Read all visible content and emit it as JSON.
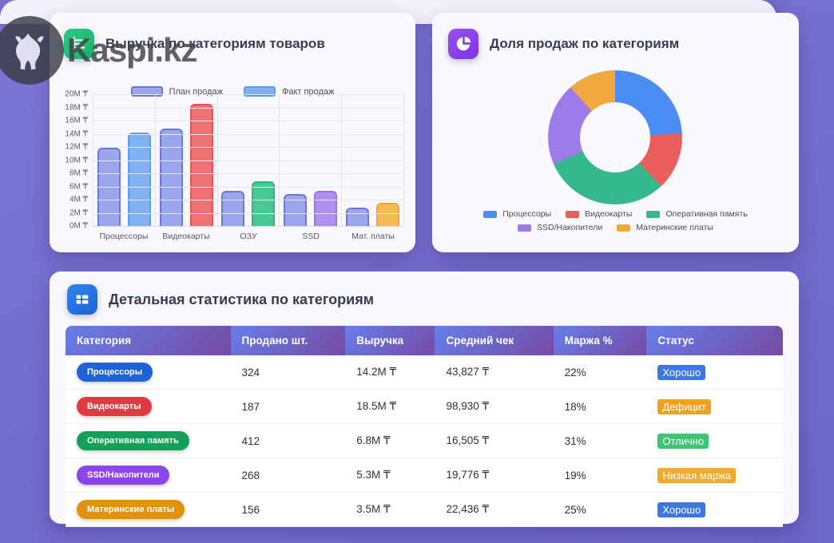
{
  "watermark": {
    "text": "Kaspi.kz"
  },
  "colors": {
    "background": "#746cce",
    "card": "#f8f8fd",
    "table_header_from": "#667eea",
    "table_header_to": "#764ba2"
  },
  "revenue_card": {
    "title": "Выручка по категориям товаров",
    "icon": "bar-chart-icon",
    "icon_color": "#1fbd74"
  },
  "share_card": {
    "title": "Доля продаж по категориям",
    "icon": "pie-chart-icon",
    "icon_color": "#8e44ec"
  },
  "stats_card": {
    "title": "Детальная статистика по категориям",
    "icon": "table-icon",
    "icon_color": "#2374e1"
  },
  "chart_data": [
    {
      "type": "bar",
      "title": "Выручка по категориям товаров",
      "categories": [
        "Процессоры",
        "Видеокарты",
        "ОЗУ",
        "SSD",
        "Мат. платы"
      ],
      "series": [
        {
          "name": "План продаж",
          "values": [
            11.9,
            14.8,
            5.3,
            4.8,
            2.8
          ],
          "fill": "#9ba6ed",
          "border": "#6a76dd"
        },
        {
          "name": "Факт продаж",
          "values": [
            14.2,
            18.5,
            6.8,
            5.3,
            3.5
          ],
          "fills": [
            "#82b1f3",
            "#ee7173",
            "#46c993",
            "#af90f1",
            "#f6bb54"
          ],
          "borders": [
            "#5b9bee",
            "#e25456",
            "#2bb67e",
            "#9873e8",
            "#eda62f"
          ]
        }
      ],
      "ylim": [
        0,
        20
      ],
      "ytick_step": 2,
      "unit": "M ₸",
      "grid": true,
      "legend_position": "top",
      "legend": [
        {
          "label": "План продаж",
          "fill": "#9ba6ed",
          "border": "#6a76dd"
        },
        {
          "label": "Факт продаж",
          "fill": "#7fb0f1",
          "border": "#5b9bee"
        }
      ]
    },
    {
      "type": "pie",
      "title": "Доля продаж по категориям",
      "labels": [
        "Процессоры",
        "Видеокарты",
        "Оперативная память",
        "SSD/Накопители",
        "Материнские платы"
      ],
      "values": [
        324,
        187,
        412,
        268,
        156
      ],
      "percentages": [
        24.05,
        13.88,
        30.59,
        19.9,
        11.58
      ],
      "colors": [
        "#4b8cf2",
        "#e95d5d",
        "#35b98a",
        "#9f7bea",
        "#f0a93f"
      ],
      "donut": true,
      "legend_position": "bottom"
    }
  ],
  "table": {
    "columns": [
      "Категория",
      "Продано шт.",
      "Выручка",
      "Средний чек",
      "Маржа %",
      "Статус"
    ],
    "column_widths": [
      "23%",
      "16%",
      "12.5%",
      "16.5%",
      "13%",
      "19%"
    ],
    "rows": [
      {
        "category": "Процессоры",
        "category_color": "#1d62d6",
        "sold": "324",
        "revenue": "14.2M ₸",
        "avg_check": "43,827 ₸",
        "margin": "22%",
        "status": "Хорошо",
        "status_color": "#3c78e0"
      },
      {
        "category": "Видеокарты",
        "category_color": "#df3b40",
        "sold": "187",
        "revenue": "18.5M ₸",
        "avg_check": "98,930 ₸",
        "margin": "18%",
        "status": "Дефицит",
        "status_color": "#f0a11d"
      },
      {
        "category": "Оперативная память",
        "category_color": "#13a058",
        "sold": "412",
        "revenue": "6.8M ₸",
        "avg_check": "16,505 ₸",
        "margin": "31%",
        "status": "Отлично",
        "status_color": "#3dc573"
      },
      {
        "category": "SSD/Накопители",
        "category_color": "#8b45ea",
        "sold": "268",
        "revenue": "5.3M ₸",
        "avg_check": "19,776 ₸",
        "margin": "19%",
        "status": "Низкая маржа",
        "status_color": "#eeab2d"
      },
      {
        "category": "Материнские платы",
        "category_color": "#e0920f",
        "sold": "156",
        "revenue": "3.5M ₸",
        "avg_check": "22,436 ₸",
        "margin": "25%",
        "status": "Хорошо",
        "status_color": "#3c78e0"
      }
    ]
  }
}
